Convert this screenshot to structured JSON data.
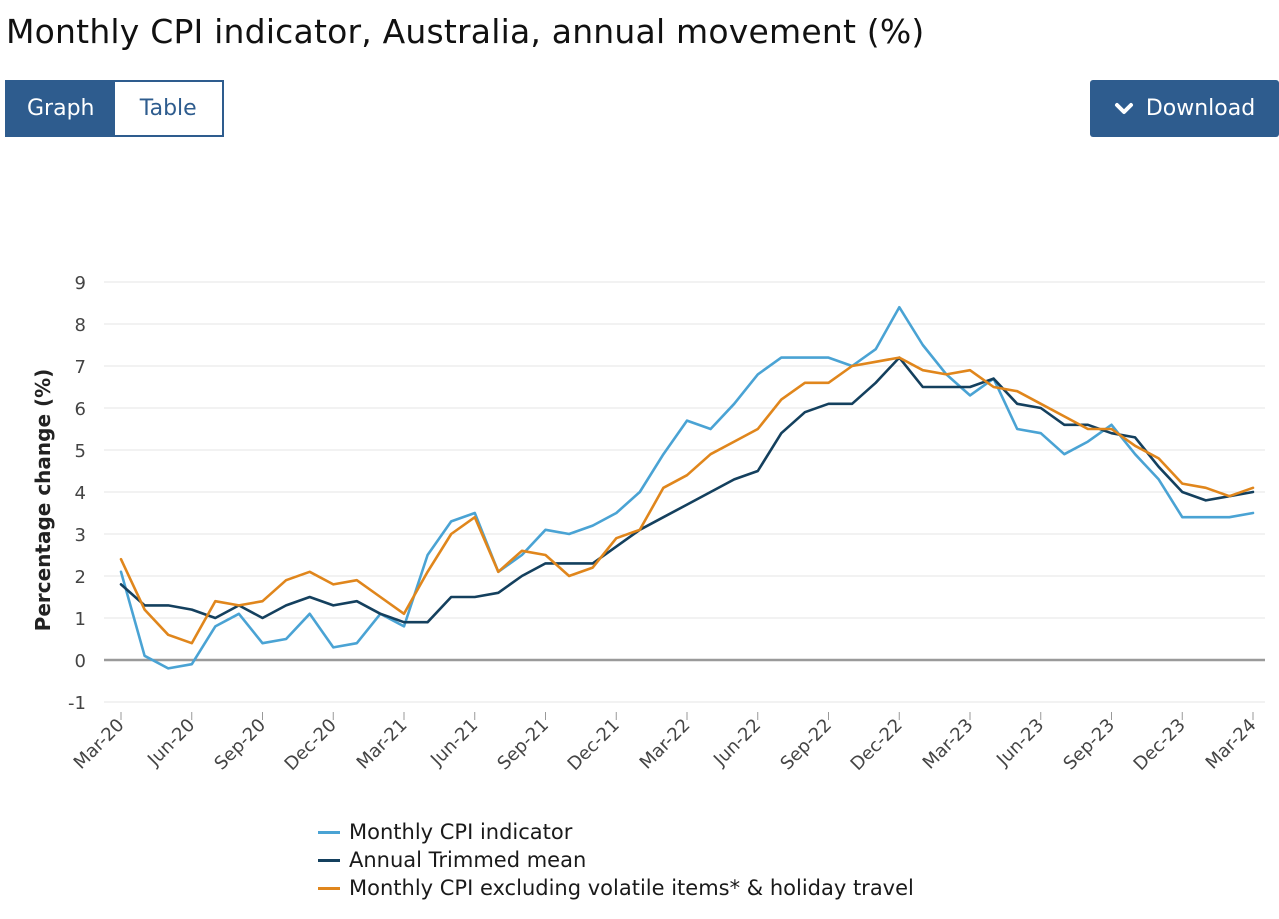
{
  "page": {
    "title": "Monthly CPI indicator, Australia, annual movement (%)"
  },
  "controls": {
    "graph_label": "Graph",
    "table_label": "Table",
    "download_label": "Download"
  },
  "colors": {
    "accent": "#2e5c8e",
    "series_cpi": "#4aa3d4",
    "series_trimmed": "#14405e",
    "series_excl": "#e0861c"
  },
  "chart_data": {
    "type": "line",
    "title": "Monthly CPI indicator, Australia, annual movement (%)",
    "xlabel": "",
    "ylabel": "Percentage change (%)",
    "ylim": [
      -1,
      9
    ],
    "yticks": [
      -1,
      0,
      1,
      2,
      3,
      4,
      5,
      6,
      7,
      8,
      9
    ],
    "grid": true,
    "legend_position": "bottom",
    "x": [
      "Mar-20",
      "Apr-20",
      "May-20",
      "Jun-20",
      "Jul-20",
      "Aug-20",
      "Sep-20",
      "Oct-20",
      "Nov-20",
      "Dec-20",
      "Jan-21",
      "Feb-21",
      "Mar-21",
      "Apr-21",
      "May-21",
      "Jun-21",
      "Jul-21",
      "Aug-21",
      "Sep-21",
      "Oct-21",
      "Nov-21",
      "Dec-21",
      "Jan-22",
      "Feb-22",
      "Mar-22",
      "Apr-22",
      "May-22",
      "Jun-22",
      "Jul-22",
      "Aug-22",
      "Sep-22",
      "Oct-22",
      "Nov-22",
      "Dec-22",
      "Jan-23",
      "Feb-23",
      "Mar-23",
      "Apr-23",
      "May-23",
      "Jun-23",
      "Jul-23",
      "Aug-23",
      "Sep-23",
      "Oct-23",
      "Nov-23",
      "Dec-23",
      "Jan-24",
      "Feb-24",
      "Mar-24"
    ],
    "x_tick_labels": [
      "Mar-20",
      "Jun-20",
      "Sep-20",
      "Dec-20",
      "Mar-21",
      "Jun-21",
      "Sep-21",
      "Dec-21",
      "Mar-22",
      "Jun-22",
      "Sep-22",
      "Dec-22",
      "Mar-23",
      "Jun-23",
      "Sep-23",
      "Dec-23",
      "Mar-24"
    ],
    "series": [
      {
        "name": "Monthly CPI indicator",
        "color": "#4aa3d4",
        "values": [
          2.1,
          0.1,
          -0.2,
          -0.1,
          0.8,
          1.1,
          0.4,
          0.5,
          1.1,
          0.3,
          0.4,
          1.1,
          0.8,
          2.5,
          3.3,
          3.5,
          2.1,
          2.5,
          3.1,
          3.0,
          3.2,
          3.5,
          4.0,
          4.9,
          5.7,
          5.5,
          6.1,
          6.8,
          7.2,
          7.2,
          7.2,
          7.0,
          7.4,
          8.4,
          7.5,
          6.8,
          6.3,
          6.7,
          5.5,
          5.4,
          4.9,
          5.2,
          5.6,
          4.9,
          4.3,
          3.4,
          3.4,
          3.4,
          3.5
        ]
      },
      {
        "name": "Annual Trimmed mean",
        "color": "#14405e",
        "values": [
          1.8,
          1.3,
          1.3,
          1.2,
          1.0,
          1.3,
          1.0,
          1.3,
          1.5,
          1.3,
          1.4,
          1.1,
          0.9,
          0.9,
          1.5,
          1.5,
          1.6,
          2.0,
          2.3,
          2.3,
          2.3,
          2.7,
          3.1,
          3.4,
          3.7,
          4.0,
          4.3,
          4.5,
          5.4,
          5.9,
          6.1,
          6.1,
          6.6,
          7.2,
          6.5,
          6.5,
          6.5,
          6.7,
          6.1,
          6.0,
          5.6,
          5.6,
          5.4,
          5.3,
          4.6,
          4.0,
          3.8,
          3.9,
          4.0
        ]
      },
      {
        "name": "Monthly CPI excluding volatile items* & holiday travel",
        "color": "#e0861c",
        "values": [
          2.4,
          1.2,
          0.6,
          0.4,
          1.4,
          1.3,
          1.4,
          1.9,
          2.1,
          1.8,
          1.9,
          1.5,
          1.1,
          2.1,
          3.0,
          3.4,
          2.1,
          2.6,
          2.5,
          2.0,
          2.2,
          2.9,
          3.1,
          4.1,
          4.4,
          4.9,
          5.2,
          5.5,
          6.2,
          6.6,
          6.6,
          7.0,
          7.1,
          7.2,
          6.9,
          6.8,
          6.9,
          6.5,
          6.4,
          6.1,
          5.8,
          5.5,
          5.5,
          5.1,
          4.8,
          4.2,
          4.1,
          3.9,
          4.1
        ]
      }
    ]
  }
}
